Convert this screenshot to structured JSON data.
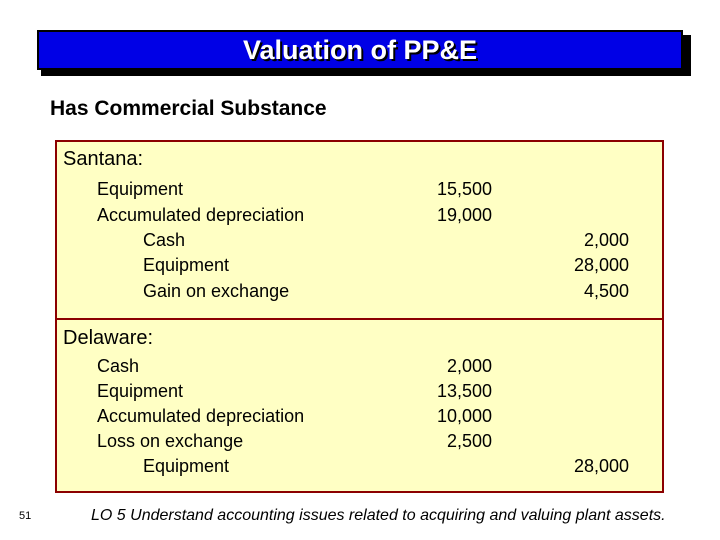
{
  "slide": {
    "title": "Valuation of PP&E",
    "subtitle": "Has Commercial Substance",
    "page_number": "51",
    "footer": "LO 5  Understand accounting issues related to acquiring and valuing plant assets."
  },
  "colors": {
    "title_bg": "#0000e6",
    "panel_bg": "#ffffc4",
    "panel_border": "#8b0000"
  },
  "santana": {
    "heading": "Santana:",
    "rows": [
      {
        "account": "Equipment",
        "debit": "15,500",
        "credit": ""
      },
      {
        "account": "Accumulated depreciation",
        "debit": "19,000",
        "credit": ""
      },
      {
        "account": "Cash",
        "debit": "",
        "credit": "2,000"
      },
      {
        "account": "Equipment",
        "debit": "",
        "credit": "28,000"
      },
      {
        "account": "Gain on exchange",
        "debit": "",
        "credit": "4,500"
      }
    ]
  },
  "delaware": {
    "heading": "Delaware:",
    "rows": [
      {
        "account": "Cash",
        "debit": "2,000",
        "credit": ""
      },
      {
        "account": "Equipment",
        "debit": "13,500",
        "credit": ""
      },
      {
        "account": "Accumulated depreciation",
        "debit": "10,000",
        "credit": ""
      },
      {
        "account": "Loss on exchange",
        "debit": "2,500",
        "credit": ""
      },
      {
        "account": "Equipment",
        "debit": "",
        "credit": "28,000"
      }
    ]
  }
}
